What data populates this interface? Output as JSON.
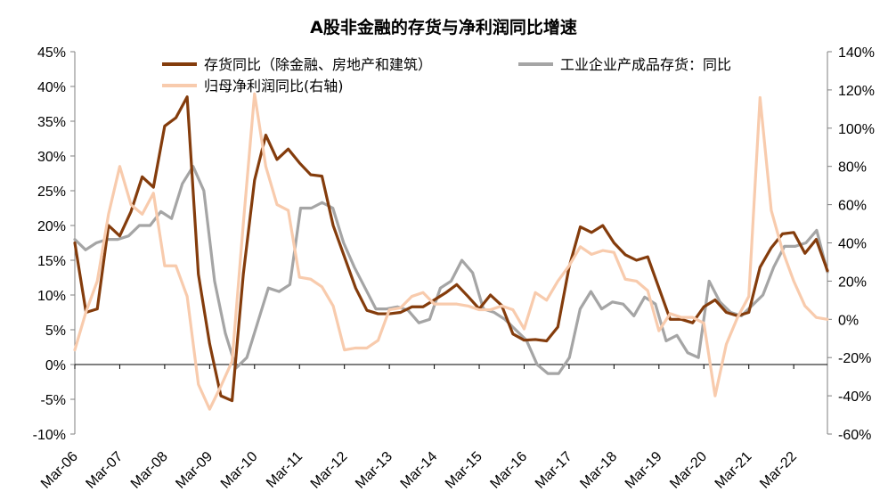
{
  "chart_data": {
    "type": "line",
    "title": "A股非金融的存货与净利润同比增速",
    "x_labels": [
      "Mar-06",
      "Mar-07",
      "Mar-08",
      "Mar-09",
      "Mar-10",
      "Mar-11",
      "Mar-12",
      "Mar-13",
      "Mar-14",
      "Mar-15",
      "Mar-16",
      "Mar-17",
      "Mar-18",
      "Mar-19",
      "Mar-20",
      "Mar-21",
      "Mar-22"
    ],
    "y_left": {
      "min": -10,
      "max": 45,
      "step": 5,
      "tick_labels": [
        "-10%",
        "-5%",
        "0%",
        "5%",
        "10%",
        "15%",
        "20%",
        "25%",
        "30%",
        "35%",
        "40%",
        "45%"
      ]
    },
    "y_right": {
      "min": -60,
      "max": 140,
      "step": 20,
      "tick_labels": [
        "-60%",
        "-40%",
        "-20%",
        "0%",
        "20%",
        "40%",
        "60%",
        "80%",
        "100%",
        "120%",
        "140%"
      ]
    },
    "legend_placement": "top",
    "series": [
      {
        "name": "存货同比（除金融、房地产和建筑）",
        "axis": "left",
        "color": "#843C0C",
        "values": [
          17.5,
          7.5,
          8,
          20,
          18.5,
          22,
          27,
          25.5,
          34.3,
          35.5,
          38.5,
          13,
          3,
          -4.5,
          -5.2,
          13,
          26.5,
          33,
          29.5,
          31,
          29,
          27.3,
          27.1,
          20,
          15.5,
          11,
          7.8,
          7.3,
          7.3,
          7.5,
          8.3,
          8.3,
          9.3,
          10.3,
          11.5,
          9.8,
          8,
          10,
          8.5,
          4.4,
          3.5,
          3.6,
          3.4,
          5.4,
          14,
          19.8,
          19,
          20,
          17.5,
          15.8,
          15,
          15.5,
          11,
          6.5,
          6.5,
          6,
          8.3,
          9.3,
          7.5,
          7,
          7.5,
          14,
          16.8,
          18.8,
          19,
          16,
          18,
          13.5
        ]
      },
      {
        "name": "工业企业产成品存货：同比",
        "axis": "left",
        "color": "#A5A5A5",
        "values": [
          18,
          16.5,
          17.5,
          18,
          18,
          18.5,
          20,
          20,
          22,
          21,
          26,
          28.5,
          25,
          12,
          4.5,
          -0.5,
          1,
          6,
          11,
          10.5,
          11.5,
          22.5,
          22.5,
          23.3,
          22.5,
          17.5,
          14,
          11,
          8,
          8,
          8.3,
          7.8,
          6,
          6.5,
          11,
          12,
          15,
          13.2,
          8,
          7.5,
          6.5,
          5,
          3.5,
          0,
          -1.3,
          -1.3,
          1,
          8,
          10.5,
          8,
          9,
          8.7,
          7,
          9.7,
          8.7,
          3.4,
          4.2,
          1.7,
          1,
          12,
          9,
          7.5,
          7,
          8.5,
          10,
          14,
          17,
          17,
          17.5,
          19.3,
          13.3
        ]
      },
      {
        "name": "归母净利润同比(右轴)",
        "axis": "right",
        "color": "#F8CBAD",
        "values": [
          -16,
          4,
          20,
          55,
          80,
          60,
          55,
          66,
          28,
          28,
          12,
          -34,
          -47,
          -35,
          -22,
          50,
          118,
          80,
          60,
          57,
          22,
          21,
          17,
          7,
          -16,
          -15,
          -15,
          -11,
          5,
          6,
          12,
          14,
          8,
          8,
          8,
          7,
          5,
          5,
          7,
          5,
          -5,
          14,
          10,
          20,
          28,
          38,
          34,
          36,
          35,
          21,
          20,
          15,
          -6,
          3,
          1,
          1,
          -2,
          -40,
          -13,
          1,
          12,
          116,
          57,
          36,
          20,
          7,
          1,
          0
        ]
      }
    ]
  }
}
